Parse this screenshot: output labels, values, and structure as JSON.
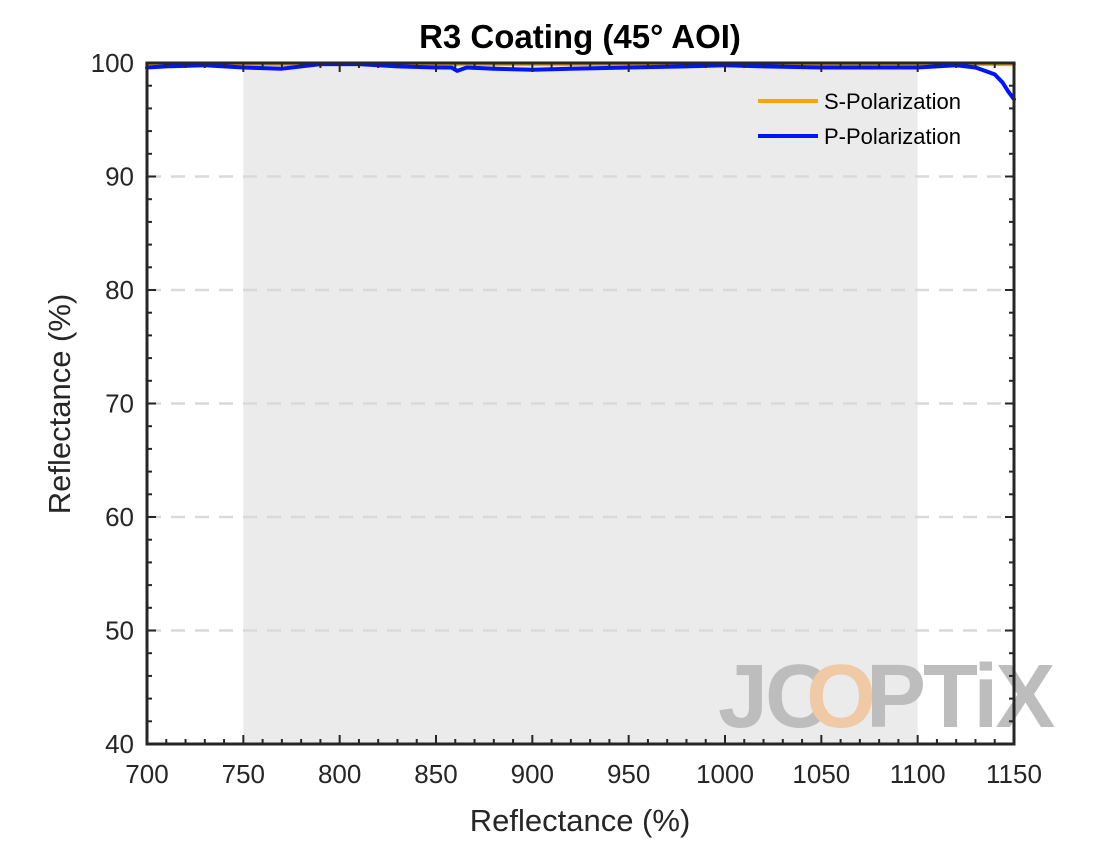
{
  "chart_data": {
    "type": "line",
    "title": "R3 Coating  (45° AOI)",
    "xlabel": "Reflectance (%)",
    "ylabel": "Reflectance (%)",
    "xlim": [
      700,
      1150
    ],
    "ylim": [
      40,
      100
    ],
    "xticks": [
      700,
      750,
      800,
      850,
      900,
      950,
      1000,
      1050,
      1100,
      1150
    ],
    "yticks": [
      40,
      50,
      60,
      70,
      80,
      90,
      100
    ],
    "grid": "horizontal dashed",
    "shaded_region": {
      "x_start": 750,
      "x_end": 1100,
      "color": "#ebebeb"
    },
    "legend_position": "top-right",
    "series": [
      {
        "name": "S-Polarization",
        "color": "#f2a900",
        "x": [
          700,
          750,
          800,
          850,
          900,
          950,
          1000,
          1050,
          1100,
          1130,
          1140,
          1150
        ],
        "values": [
          99.9,
          99.9,
          99.9,
          99.9,
          99.9,
          99.9,
          99.9,
          99.9,
          99.9,
          99.9,
          99.9,
          99.9
        ]
      },
      {
        "name": "P-Polarization",
        "color": "#0014ff",
        "x": [
          700,
          710,
          730,
          750,
          770,
          790,
          810,
          830,
          850,
          858,
          861,
          866,
          880,
          900,
          920,
          950,
          980,
          1000,
          1020,
          1050,
          1080,
          1100,
          1110,
          1120,
          1125,
          1130,
          1135,
          1140,
          1144,
          1147,
          1150
        ],
        "values": [
          99.6,
          99.7,
          99.8,
          99.6,
          99.5,
          99.9,
          99.9,
          99.7,
          99.6,
          99.6,
          99.3,
          99.6,
          99.5,
          99.4,
          99.5,
          99.6,
          99.7,
          99.8,
          99.7,
          99.6,
          99.6,
          99.6,
          99.7,
          99.8,
          99.7,
          99.6,
          99.3,
          99.0,
          98.3,
          97.5,
          96.8
        ]
      }
    ],
    "watermark": {
      "text_left": "JC",
      "text_mid": "O",
      "text_right": "PTiX",
      "color": "#bdbdbd",
      "accent_color": "#f0c9a5"
    }
  }
}
